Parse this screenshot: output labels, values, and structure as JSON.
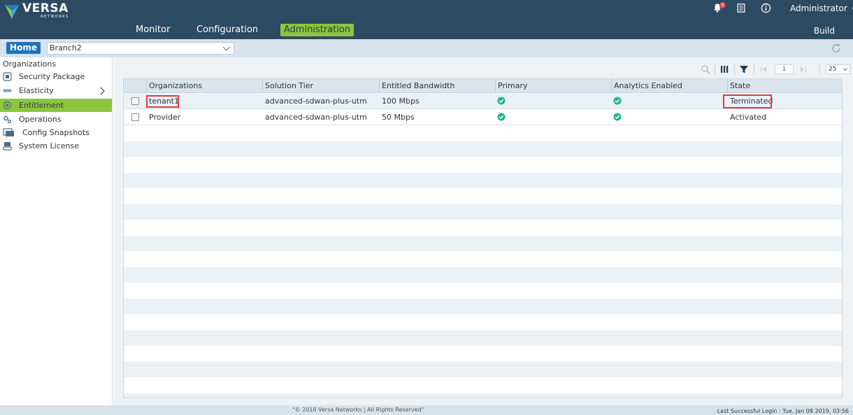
{
  "brand": {
    "name": "VERSA",
    "sub": "NETWORKS"
  },
  "nav": {
    "monitor": "Monitor",
    "configuration": "Configuration",
    "administration": "Administration"
  },
  "header": {
    "notification_count": "0",
    "user": "Administrator",
    "build": "Build"
  },
  "subbar": {
    "home": "Home",
    "appliance": "Branch2"
  },
  "sidebar": {
    "title": "Organizations",
    "items": [
      {
        "label": "Security Package",
        "icon": "security-package-icon"
      },
      {
        "label": "Elasticity",
        "icon": "elasticity-icon"
      },
      {
        "label": "Entitlement",
        "icon": "entitlement-icon"
      },
      {
        "label": "Operations",
        "icon": "operations-icon"
      },
      {
        "label": "Config Snapshots",
        "icon": "config-snapshots-icon"
      },
      {
        "label": "System License",
        "icon": "system-license-icon"
      }
    ]
  },
  "toolbar": {
    "page": "1",
    "per_page": "25"
  },
  "table": {
    "headers": [
      "Organizations",
      "Solution Tier",
      "Entitled Bandwidth",
      "Primary",
      "Analytics Enabled",
      "State"
    ],
    "rows": [
      {
        "organization": "tenant1",
        "tier": "advanced-sdwan-plus-utm",
        "bandwidth": "100 Mbps",
        "primary": true,
        "analytics": true,
        "state": "Terminated"
      },
      {
        "organization": "Provider",
        "tier": "advanced-sdwan-plus-utm",
        "bandwidth": "50 Mbps",
        "primary": true,
        "analytics": true,
        "state": "Activated"
      }
    ]
  },
  "footer": {
    "copyright": "\"© 2018 Versa Networks | All Rights Reserved\"",
    "last_login": "Last Successful Login : Tue, Jan 08 2019, 03:56"
  },
  "colors": {
    "header_bg": "#2d4a63",
    "accent": "#8cc63f",
    "home_btn": "#1f73b7",
    "check": "#1fb592",
    "highlight": "#e03c3c"
  }
}
